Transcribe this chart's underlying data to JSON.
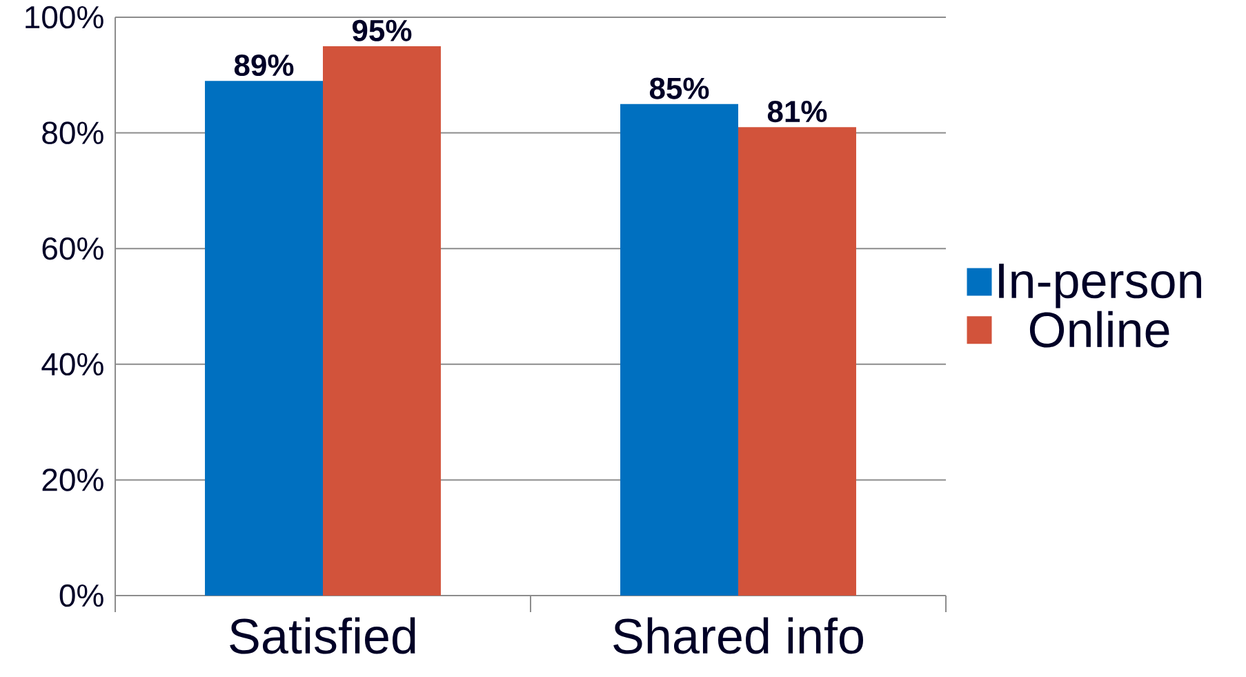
{
  "chart_data": {
    "type": "bar",
    "categories": [
      "Satisfied",
      "Shared info"
    ],
    "series": [
      {
        "name": "In-person",
        "color": "#0070c0",
        "values": [
          89,
          85
        ],
        "value_labels": [
          "89%",
          "85%"
        ]
      },
      {
        "name": "Online",
        "color": "#d2533b",
        "values": [
          95,
          81
        ],
        "value_labels": [
          "95%",
          "81%"
        ]
      }
    ],
    "ylim": [
      0,
      100
    ],
    "yticks": [
      {
        "value": 0,
        "label": "0%"
      },
      {
        "value": 20,
        "label": "20%"
      },
      {
        "value": 40,
        "label": "40%"
      },
      {
        "value": 60,
        "label": "60%"
      },
      {
        "value": 80,
        "label": "80%"
      },
      {
        "value": 100,
        "label": "100%"
      }
    ],
    "grid": "y",
    "legend": "right"
  }
}
